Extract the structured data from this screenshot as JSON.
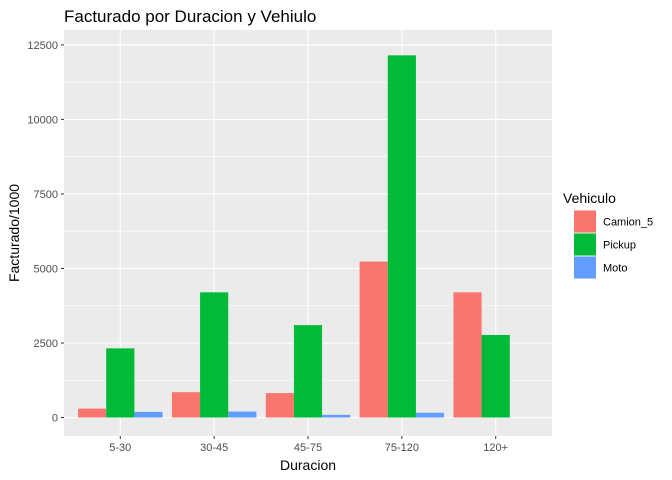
{
  "chart_data": {
    "type": "bar",
    "title": "Facturado por Duracion y Vehiulo",
    "xlabel": "Duracion",
    "ylabel": "Facturado/1000",
    "categories": [
      "5-30",
      "30-45",
      "45-75",
      "75-120",
      "120+"
    ],
    "yticks": [
      0,
      2500,
      5000,
      7500,
      10000,
      12500
    ],
    "ytick_labels": [
      "0",
      "2500",
      "5000",
      "7500",
      "10000",
      "12500"
    ],
    "ylim": [
      -620,
      13000
    ],
    "grid": true,
    "legend": {
      "title": "Vehiculo",
      "position": "right"
    },
    "series": [
      {
        "name": "Camion_5",
        "color": "#F8766D",
        "values": [
          300,
          850,
          820,
          5230,
          4200
        ]
      },
      {
        "name": "Pickup",
        "color": "#00BA38",
        "values": [
          2320,
          4200,
          3100,
          12150,
          2770
        ]
      },
      {
        "name": "Moto",
        "color": "#619CFF",
        "values": [
          190,
          200,
          90,
          160,
          null
        ]
      }
    ]
  }
}
